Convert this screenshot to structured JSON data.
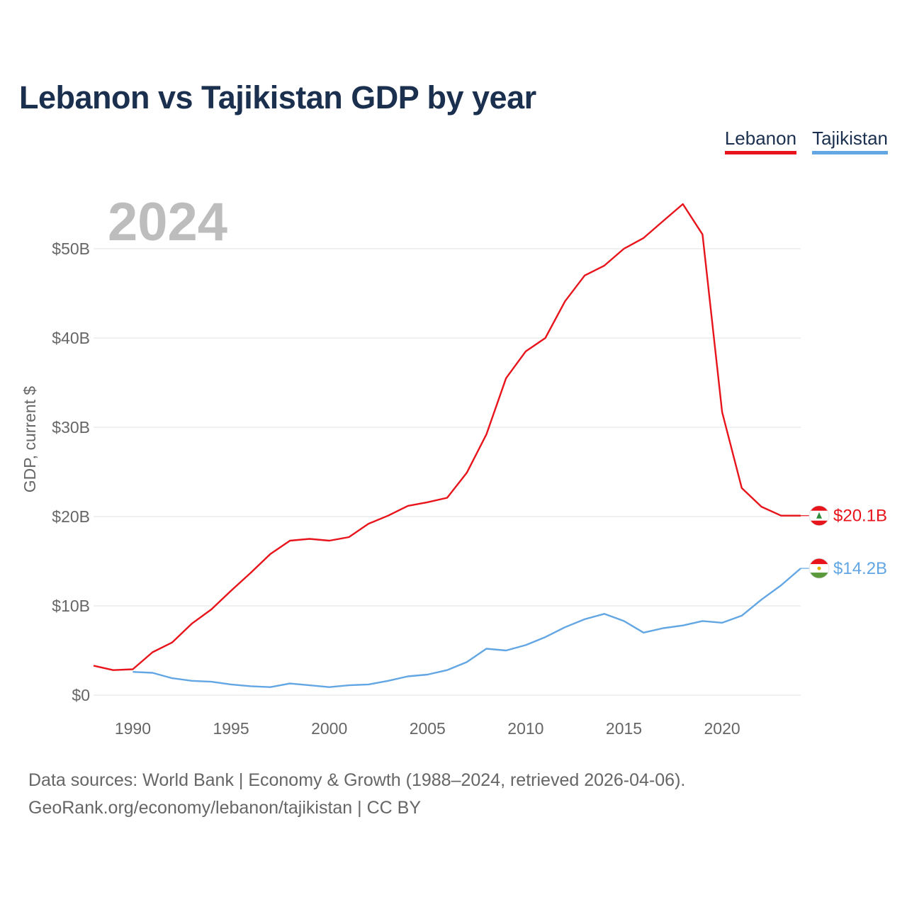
{
  "title": "Lebanon vs Tajikistan GDP by year",
  "current_year": "2024",
  "footer": {
    "line1": "Data sources: World Bank | Economy & Growth (1988–2024, retrieved 2026-04-06).",
    "line2": "GeoRank.org/economy/lebanon/tajikistan | CC BY"
  },
  "chart_data": {
    "type": "line",
    "title": "Lebanon vs Tajikistan GDP by year",
    "xlabel": "",
    "ylabel": "GDP, current $",
    "xlim": [
      1988,
      2024
    ],
    "ylim": [
      0,
      55
    ],
    "y_unit": "billion current US$",
    "x_ticks": [
      1990,
      1995,
      2000,
      2005,
      2010,
      2015,
      2020
    ],
    "y_ticks": [
      {
        "value": 0,
        "label": "$0"
      },
      {
        "value": 10,
        "label": "$10B"
      },
      {
        "value": 20,
        "label": "$20B"
      },
      {
        "value": 30,
        "label": "$30B"
      },
      {
        "value": 40,
        "label": "$40B"
      },
      {
        "value": 50,
        "label": "$50B"
      }
    ],
    "grid": true,
    "legend_position": "top-right",
    "series": [
      {
        "name": "Lebanon",
        "color": "#e8141b",
        "end_label": "$20.1B",
        "x": [
          1988,
          1989,
          1990,
          1991,
          1992,
          1993,
          1994,
          1995,
          1996,
          1997,
          1998,
          1999,
          2000,
          2001,
          2002,
          2003,
          2004,
          2005,
          2006,
          2007,
          2008,
          2009,
          2010,
          2011,
          2012,
          2013,
          2014,
          2015,
          2016,
          2017,
          2018,
          2019,
          2020,
          2021,
          2022,
          2023,
          2024
        ],
        "values": [
          3.3,
          2.8,
          2.9,
          4.8,
          5.9,
          8.0,
          9.6,
          11.7,
          13.7,
          15.8,
          17.3,
          17.5,
          17.3,
          17.7,
          19.2,
          20.1,
          21.2,
          21.6,
          22.1,
          24.9,
          29.2,
          35.5,
          38.5,
          40.0,
          44.1,
          47.0,
          48.1,
          50.0,
          51.2,
          53.1,
          55.0,
          51.6,
          31.7,
          23.2,
          21.1,
          20.1,
          20.1
        ]
      },
      {
        "name": "Tajikistan",
        "color": "#62a6e4",
        "end_label": "$14.2B",
        "x": [
          1990,
          1991,
          1992,
          1993,
          1994,
          1995,
          1996,
          1997,
          1998,
          1999,
          2000,
          2001,
          2002,
          2003,
          2004,
          2005,
          2006,
          2007,
          2008,
          2009,
          2010,
          2011,
          2012,
          2013,
          2014,
          2015,
          2016,
          2017,
          2018,
          2019,
          2020,
          2021,
          2022,
          2023,
          2024
        ],
        "values": [
          2.6,
          2.5,
          1.9,
          1.6,
          1.5,
          1.2,
          1.0,
          0.9,
          1.3,
          1.1,
          0.9,
          1.1,
          1.2,
          1.6,
          2.1,
          2.3,
          2.8,
          3.7,
          5.2,
          5.0,
          5.6,
          6.5,
          7.6,
          8.5,
          9.1,
          8.3,
          7.0,
          7.5,
          7.8,
          8.3,
          8.1,
          8.9,
          10.7,
          12.3,
          14.2
        ]
      }
    ]
  },
  "colors": {
    "title": "#1b2f4e",
    "grid": "#e6e6e6",
    "tick": "#666666",
    "big_year": "#bdbdbd"
  }
}
